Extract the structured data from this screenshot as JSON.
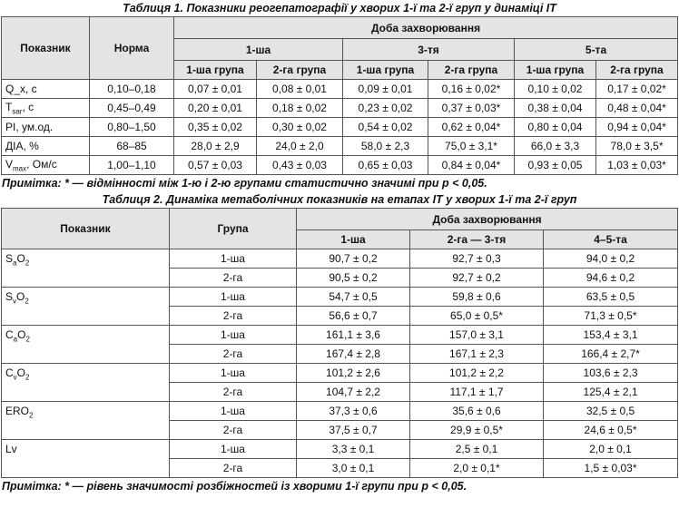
{
  "table1": {
    "caption": "Таблиця 1. Показники реогепатографії у хворих 1-ї та 2-ї груп у динаміці ІТ",
    "header": {
      "indicator": "Показник",
      "norm": "Норма",
      "period": "Доба захворювання",
      "days": [
        "1-ша",
        "3-тя",
        "5-та"
      ],
      "groups": [
        "1-ша група",
        "2-га група",
        "1-ша група",
        "2-га група",
        "1-ша група",
        "2-га група"
      ]
    },
    "rows": [
      {
        "label": [
          {
            "text": "Q_x, c"
          }
        ],
        "norm": "0,10–0,18",
        "values": [
          "0,07 ± 0,01",
          "0,08 ± 0,01",
          "0,09 ± 0,01",
          "0,16 ± 0,02*",
          "0,10 ± 0,02",
          "0,17 ± 0,02*"
        ]
      },
      {
        "label": [
          {
            "text": "T"
          },
          {
            "sub": "sar"
          },
          {
            "text": ", c"
          }
        ],
        "norm": "0,45–0,49",
        "values": [
          "0,20 ± 0,01",
          "0,18 ± 0,02",
          "0,23 ± 0,02",
          "0,37 ± 0,03*",
          "0,38 ± 0,04",
          "0,48 ± 0,04*"
        ]
      },
      {
        "label": [
          {
            "text": "PI, ум.од."
          }
        ],
        "norm": "0,80–1,50",
        "values": [
          "0,35 ± 0,02",
          "0,30 ± 0,02",
          "0,54 ± 0,02",
          "0,62 ± 0,04*",
          "0,80 ± 0,04",
          "0,94 ± 0,04*"
        ]
      },
      {
        "label": [
          {
            "text": "ДІА, %"
          }
        ],
        "norm": "68–85",
        "values": [
          "28,0 ± 2,9",
          "24,0 ± 2,0",
          "58,0 ± 2,3",
          "75,0 ± 3,1*",
          "66,0 ± 3,3",
          "78,0 ± 3,5*"
        ]
      },
      {
        "label": [
          {
            "text": "V"
          },
          {
            "sub": "max"
          },
          {
            "text": ", Ом/с"
          }
        ],
        "norm": "1,00–1,10",
        "values": [
          "0,57 ± 0,03",
          "0,43 ± 0,03",
          "0,65 ± 0,03",
          "0,84 ± 0,04*",
          "0,93 ± 0,05",
          "1,03 ± 0,03*"
        ]
      }
    ],
    "note": "Примітка: * — відмінності між 1-ю і 2-ю групами статистично значимі при р < 0,05."
  },
  "table2": {
    "caption": "Таблиця 2. Динаміка метаболічних показників на етапах ІТ у хворих 1-ї та 2-ї груп",
    "header": {
      "indicator": "Показник",
      "group": "Група",
      "period": "Доба захворювання",
      "days": [
        "1-ша",
        "2-га — 3-тя",
        "4–5-та"
      ]
    },
    "rows": [
      {
        "label": [
          {
            "text": "S"
          },
          {
            "sub": "a"
          },
          {
            "text": "O"
          },
          {
            "sub": "2"
          }
        ],
        "groups": [
          {
            "group": "1-ша",
            "values": [
              "90,7 ± 0,2",
              "92,7 ± 0,3",
              "94,0 ± 0,2"
            ]
          },
          {
            "group": "2-га",
            "values": [
              "90,5 ± 0,2",
              "92,7 ± 0,2",
              "94,6 ± 0,2"
            ]
          }
        ]
      },
      {
        "label": [
          {
            "text": "S"
          },
          {
            "sub": "v"
          },
          {
            "text": "O"
          },
          {
            "sub": "2"
          }
        ],
        "groups": [
          {
            "group": "1-ша",
            "values": [
              "54,7 ± 0,5",
              "59,8 ± 0,6",
              "63,5 ± 0,5"
            ]
          },
          {
            "group": "2-га",
            "values": [
              "56,6 ± 0,7",
              "65,0 ± 0,5*",
              "71,3 ± 0,5*"
            ]
          }
        ]
      },
      {
        "label": [
          {
            "text": "C"
          },
          {
            "sub": "a"
          },
          {
            "text": "O"
          },
          {
            "sub": "2"
          }
        ],
        "groups": [
          {
            "group": "1-ша",
            "values": [
              "161,1 ± 3,6",
              "157,0 ± 3,1",
              "153,4 ± 3,1"
            ]
          },
          {
            "group": "2-га",
            "values": [
              "167,4 ± 2,8",
              "167,1 ± 2,3",
              "166,4 ± 2,7*"
            ]
          }
        ]
      },
      {
        "label": [
          {
            "text": "C"
          },
          {
            "sub": "v"
          },
          {
            "text": "O"
          },
          {
            "sub": "2"
          }
        ],
        "groups": [
          {
            "group": "1-ша",
            "values": [
              "101,2 ± 2,6",
              "101,2 ± 2,2",
              "103,6 ± 2,3"
            ]
          },
          {
            "group": "2-га",
            "values": [
              "104,7 ± 2,2",
              "117,1 ± 1,7",
              "125,4 ± 2,1"
            ]
          }
        ]
      },
      {
        "label": [
          {
            "text": "ERO"
          },
          {
            "sub": "2"
          }
        ],
        "groups": [
          {
            "group": "1-ша",
            "values": [
              "37,3 ± 0,6",
              "35,6 ± 0,6",
              "32,5 ± 0,5"
            ]
          },
          {
            "group": "2-га",
            "values": [
              "37,5 ± 0,7",
              "29,9 ± 0,5*",
              "24,6 ± 0,5*"
            ]
          }
        ]
      },
      {
        "label": [
          {
            "text": "Lv"
          }
        ],
        "groups": [
          {
            "group": "1-ша",
            "values": [
              "3,3 ± 0,1",
              "2,5 ± 0,1",
              "2,0 ± 0,1"
            ]
          },
          {
            "group": "2-га",
            "values": [
              "3,0 ± 0,1",
              "2,0 ± 0,1*",
              "1,5 ± 0,03*"
            ]
          }
        ]
      }
    ],
    "note": "Примітка: * — рівень значимості розбіжностей із хворими 1-ї групи при р < 0,05."
  }
}
